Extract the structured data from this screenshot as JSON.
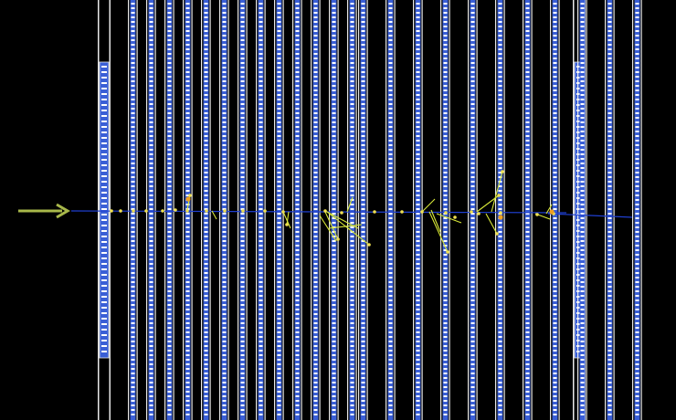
{
  "scene": {
    "background": "#000000",
    "frame_color": "#e8e8e8",
    "panel_fill": "#3a5fd6",
    "panel_dot": "#ffffff",
    "beam_color": "#1f3fd0",
    "arrow_color": "#a8b84a",
    "track_color": "#d8e838",
    "hit_color": "#f0e050",
    "hot_hit_color": "#f0a020",
    "arrow_icon": "incoming-beam-arrow",
    "detector_planes": 24,
    "end_caps": 2
  }
}
